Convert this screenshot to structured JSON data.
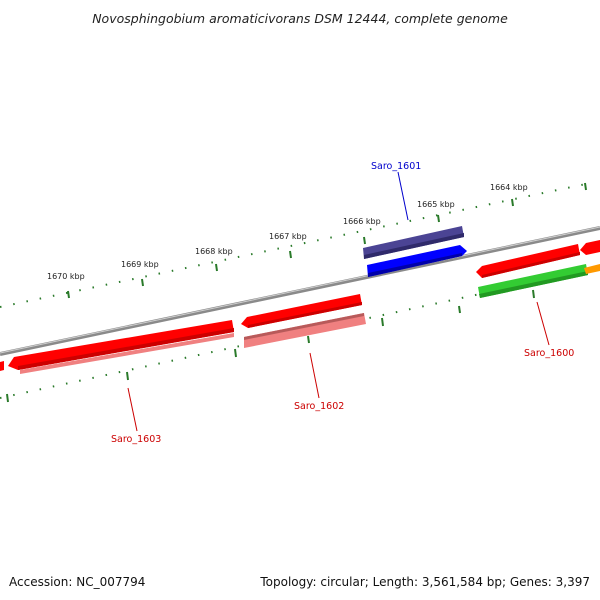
{
  "title": "Novosphingobium aromaticivorans DSM 12444, complete genome",
  "footer": {
    "accession": "Accession: NC_007794",
    "summary": "Topology: circular; Length: 3,561,584 bp; Genes: 3,397"
  },
  "colors": {
    "backbone": "#8a8a8a",
    "tick": "#2a7a2a",
    "gene_forward_red": "#ff0000",
    "gene_reverse_red": "#f08080",
    "gene_blue": "#0000ff",
    "gene_dark_blue": "#4b4494",
    "gene_green": "#33cc33",
    "gene_orange": "#ff9900",
    "label_red": "#cc0000",
    "label_blue": "#0000cc"
  },
  "kbp_labels": [
    "1664 kbp",
    "1665 kbp",
    "1666 kbp",
    "1667 kbp",
    "1668 kbp",
    "1669 kbp",
    "1670 kbp"
  ],
  "gene_labels": [
    {
      "name": "Saro_1601",
      "color": "label_blue"
    },
    {
      "name": "Saro_1600",
      "color": "label_red"
    },
    {
      "name": "Saro_1602",
      "color": "label_red"
    },
    {
      "name": "Saro_1603",
      "color": "label_red"
    }
  ]
}
